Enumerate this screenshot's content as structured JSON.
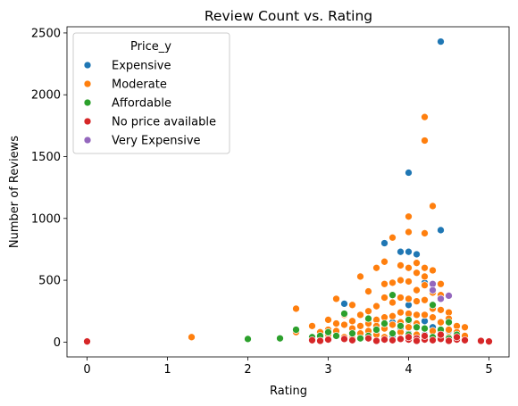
{
  "chart_data": {
    "type": "scatter",
    "title": "Review Count vs. Rating",
    "xlabel": "Rating",
    "ylabel": "Number of Reviews",
    "xlim": [
      -0.25,
      5.25
    ],
    "ylim": [
      -120,
      2550
    ],
    "xticks": [
      "0",
      "1",
      "2",
      "3",
      "4",
      "5"
    ],
    "yticks": [
      "0",
      "500",
      "1000",
      "1500",
      "2000",
      "2500"
    ],
    "grid": false,
    "legend": {
      "title": "Price_y",
      "placement": "top-left"
    },
    "series": [
      {
        "name": "Expensive",
        "color": "#1f77b4",
        "points": [
          [
            4.4,
            2430
          ],
          [
            4.0,
            1370
          ],
          [
            4.4,
            905
          ],
          [
            3.7,
            800
          ],
          [
            3.9,
            730
          ],
          [
            4.0,
            730
          ],
          [
            4.1,
            710
          ],
          [
            4.2,
            480
          ],
          [
            3.2,
            310
          ],
          [
            4.0,
            300
          ],
          [
            4.3,
            280
          ],
          [
            4.0,
            220
          ],
          [
            3.5,
            180
          ],
          [
            4.2,
            170
          ],
          [
            3.8,
            160
          ],
          [
            4.1,
            140
          ],
          [
            4.3,
            120
          ],
          [
            3.9,
            110
          ],
          [
            4.4,
            100
          ],
          [
            4.5,
            90
          ],
          [
            3.6,
            80
          ],
          [
            4.0,
            70
          ],
          [
            4.2,
            60
          ],
          [
            3.8,
            50
          ],
          [
            4.4,
            40
          ],
          [
            4.1,
            30
          ],
          [
            4.6,
            50
          ],
          [
            3.7,
            20
          ]
        ]
      },
      {
        "name": "Moderate",
        "color": "#ff7f0e",
        "points": [
          [
            4.2,
            1820
          ],
          [
            4.2,
            1630
          ],
          [
            4.3,
            1100
          ],
          [
            4.0,
            1015
          ],
          [
            4.0,
            890
          ],
          [
            4.2,
            880
          ],
          [
            3.8,
            845
          ],
          [
            3.7,
            650
          ],
          [
            3.9,
            620
          ],
          [
            4.1,
            640
          ],
          [
            4.2,
            600
          ],
          [
            3.6,
            600
          ],
          [
            4.0,
            600
          ],
          [
            4.3,
            580
          ],
          [
            4.1,
            560
          ],
          [
            4.2,
            530
          ],
          [
            3.4,
            530
          ],
          [
            3.9,
            500
          ],
          [
            4.0,
            490
          ],
          [
            3.8,
            480
          ],
          [
            3.7,
            470
          ],
          [
            4.4,
            470
          ],
          [
            4.2,
            460
          ],
          [
            3.5,
            410
          ],
          [
            4.1,
            420
          ],
          [
            4.3,
            400
          ],
          [
            4.4,
            380
          ],
          [
            3.7,
            360
          ],
          [
            3.1,
            350
          ],
          [
            3.9,
            360
          ],
          [
            4.0,
            350
          ],
          [
            2.6,
            270
          ],
          [
            3.3,
            300
          ],
          [
            3.8,
            320
          ],
          [
            4.1,
            330
          ],
          [
            4.2,
            340
          ],
          [
            3.6,
            290
          ],
          [
            4.3,
            270
          ],
          [
            3.5,
            250
          ],
          [
            4.4,
            260
          ],
          [
            4.5,
            240
          ],
          [
            3.2,
            220
          ],
          [
            3.4,
            220
          ],
          [
            3.9,
            240
          ],
          [
            4.0,
            230
          ],
          [
            4.1,
            220
          ],
          [
            3.7,
            200
          ],
          [
            3.8,
            210
          ],
          [
            4.2,
            220
          ],
          [
            3.0,
            180
          ],
          [
            3.3,
            170
          ],
          [
            3.6,
            180
          ],
          [
            4.3,
            200
          ],
          [
            4.5,
            190
          ],
          [
            3.1,
            150
          ],
          [
            3.5,
            150
          ],
          [
            3.9,
            160
          ],
          [
            4.0,
            170
          ],
          [
            4.4,
            160
          ],
          [
            2.8,
            130
          ],
          [
            3.2,
            140
          ],
          [
            3.4,
            130
          ],
          [
            3.6,
            130
          ],
          [
            3.8,
            140
          ],
          [
            4.1,
            150
          ],
          [
            4.6,
            130
          ],
          [
            3.0,
            100
          ],
          [
            3.3,
            110
          ],
          [
            3.7,
            110
          ],
          [
            4.0,
            120
          ],
          [
            4.2,
            110
          ],
          [
            4.5,
            100
          ],
          [
            2.9,
            80
          ],
          [
            3.1,
            90
          ],
          [
            3.5,
            90
          ],
          [
            3.9,
            80
          ],
          [
            4.3,
            90
          ],
          [
            4.7,
            120
          ],
          [
            3.0,
            60
          ],
          [
            3.4,
            70
          ],
          [
            3.6,
            60
          ],
          [
            3.8,
            70
          ],
          [
            4.1,
            60
          ],
          [
            4.4,
            70
          ],
          [
            4.6,
            80
          ],
          [
            3.2,
            40
          ],
          [
            3.5,
            40
          ],
          [
            3.7,
            40
          ],
          [
            4.0,
            45
          ],
          [
            4.2,
            40
          ],
          [
            4.5,
            40
          ],
          [
            4.7,
            50
          ],
          [
            2.6,
            80
          ],
          [
            1.3,
            40
          ],
          [
            3.3,
            30
          ],
          [
            3.9,
            30
          ],
          [
            4.3,
            30
          ]
        ]
      },
      {
        "name": "Affordable",
        "color": "#2ca02c",
        "points": [
          [
            3.8,
            380
          ],
          [
            4.3,
            300
          ],
          [
            3.2,
            230
          ],
          [
            3.5,
            190
          ],
          [
            4.0,
            180
          ],
          [
            4.5,
            160
          ],
          [
            3.7,
            150
          ],
          [
            3.9,
            130
          ],
          [
            4.1,
            120
          ],
          [
            4.2,
            110
          ],
          [
            3.6,
            100
          ],
          [
            4.4,
            100
          ],
          [
            2.6,
            100
          ],
          [
            3.0,
            80
          ],
          [
            3.3,
            70
          ],
          [
            3.8,
            70
          ],
          [
            4.0,
            60
          ],
          [
            2.9,
            50
          ],
          [
            3.1,
            50
          ],
          [
            3.5,
            50
          ],
          [
            2.8,
            40
          ],
          [
            4.3,
            40
          ],
          [
            4.6,
            60
          ],
          [
            2.0,
            25
          ],
          [
            2.4,
            30
          ],
          [
            3.4,
            30
          ],
          [
            4.5,
            30
          ]
        ]
      },
      {
        "name": "No price available",
        "color": "#d62728",
        "points": [
          [
            0.0,
            5
          ],
          [
            2.8,
            15
          ],
          [
            2.9,
            10
          ],
          [
            3.0,
            20
          ],
          [
            3.2,
            25
          ],
          [
            3.5,
            30
          ],
          [
            3.7,
            20
          ],
          [
            3.8,
            15
          ],
          [
            3.9,
            25
          ],
          [
            4.0,
            20
          ],
          [
            4.1,
            30
          ],
          [
            4.2,
            20
          ],
          [
            4.3,
            15
          ],
          [
            4.4,
            25
          ],
          [
            4.5,
            10
          ],
          [
            4.6,
            20
          ],
          [
            4.7,
            15
          ],
          [
            4.9,
            10
          ],
          [
            5.0,
            5
          ],
          [
            3.6,
            10
          ],
          [
            4.0,
            40
          ],
          [
            4.2,
            50
          ],
          [
            4.4,
            60
          ],
          [
            4.6,
            40
          ],
          [
            3.3,
            15
          ],
          [
            4.1,
            10
          ]
        ]
      },
      {
        "name": "Very Expensive",
        "color": "#9467bd",
        "points": [
          [
            4.3,
            470
          ],
          [
            4.5,
            375
          ],
          [
            4.4,
            350
          ],
          [
            4.3,
            420
          ]
        ]
      }
    ]
  }
}
